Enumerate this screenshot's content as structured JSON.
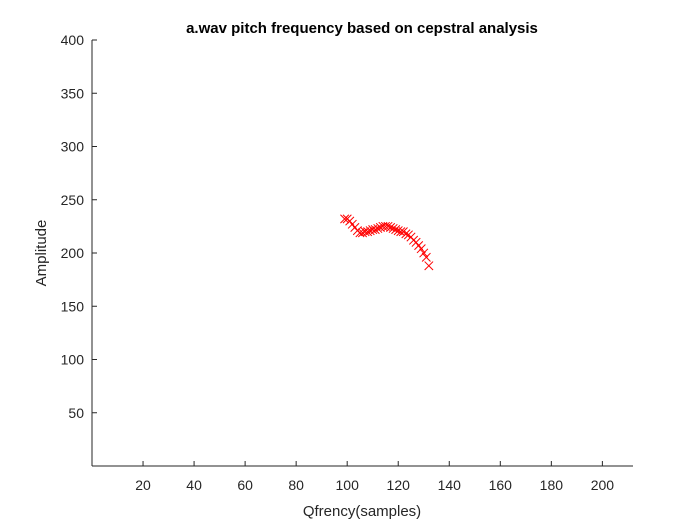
{
  "chart_data": {
    "type": "scatter",
    "title": "a.wav pitch frequency based on cepstral analysis",
    "xlabel": "Qfrency(samples)",
    "ylabel": "Amplitude",
    "xlim": [
      0,
      212
    ],
    "ylim": [
      0,
      400
    ],
    "xticks": [
      20,
      40,
      60,
      80,
      100,
      120,
      140,
      160,
      180,
      200
    ],
    "yticks": [
      50,
      100,
      150,
      200,
      250,
      300,
      350,
      400
    ],
    "marker": "x",
    "marker_color": "#ff0000",
    "grid": false,
    "box": false,
    "series": [
      {
        "x": [
          99,
          100,
          101,
          102,
          103,
          104,
          105,
          106,
          107,
          108,
          109,
          110,
          111,
          112,
          113,
          114,
          115,
          116,
          117,
          118,
          119,
          120,
          121,
          122,
          123,
          124,
          125,
          126,
          127,
          128,
          129,
          130,
          131,
          132
        ],
        "y": [
          232,
          232,
          230,
          227,
          224,
          221,
          219,
          219,
          220,
          220,
          221,
          222,
          222,
          223,
          224,
          225,
          225,
          225,
          224,
          223,
          222,
          221,
          220,
          220,
          218,
          217,
          215,
          212,
          210,
          207,
          204,
          200,
          196,
          188
        ]
      }
    ]
  }
}
